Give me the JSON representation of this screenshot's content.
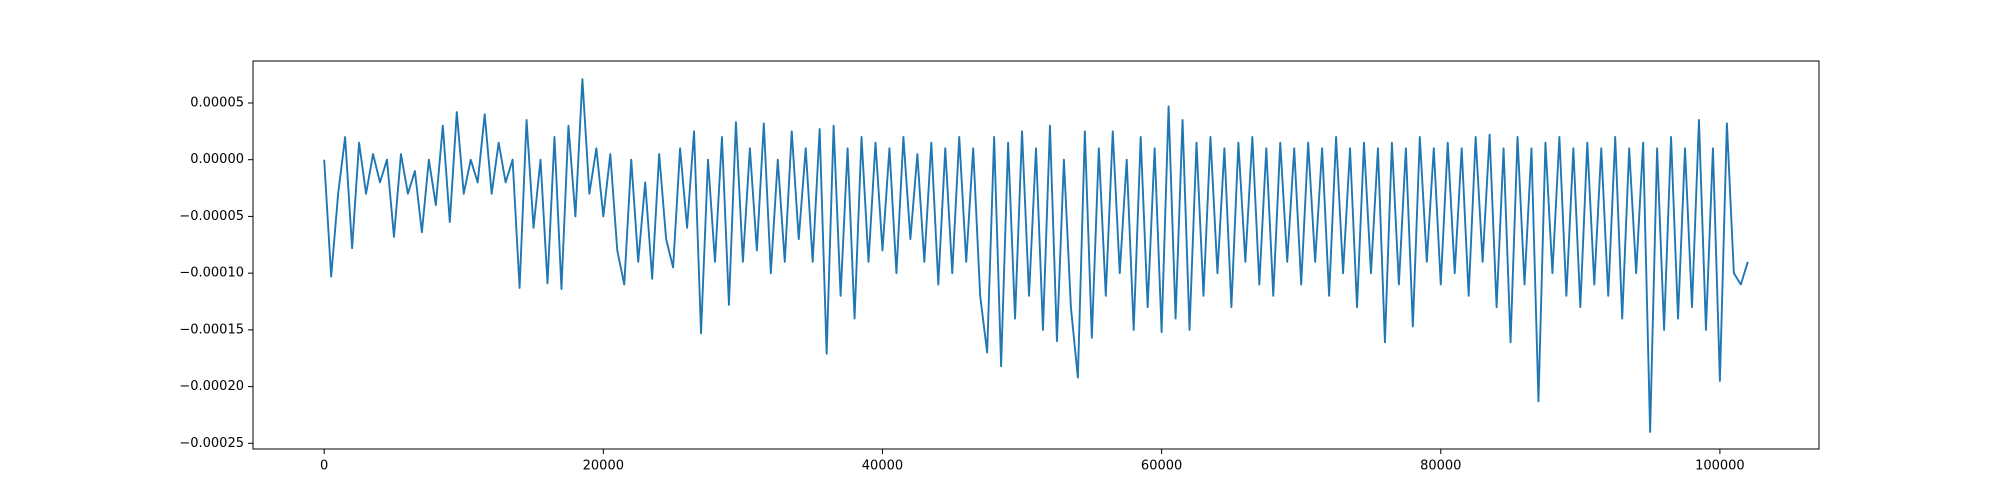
{
  "chart_data": {
    "type": "line",
    "color": "#1f77b4",
    "xlim": [
      -5100,
      107100
    ],
    "ylim": [
      -0.000255,
      8.7e-05
    ],
    "xticks": [
      0,
      20000,
      40000,
      60000,
      80000,
      100000
    ],
    "yticks": [
      {
        "value": 5e-05,
        "label": "0.00005"
      },
      {
        "value": 0,
        "label": "0.00000"
      },
      {
        "value": -5e-05,
        "label": "−0.00005"
      },
      {
        "value": -0.0001,
        "label": "−0.00010"
      },
      {
        "value": -0.00015,
        "label": "−0.00015"
      },
      {
        "value": -0.0002,
        "label": "−0.00020"
      },
      {
        "value": -0.00025,
        "label": "−0.00025"
      }
    ],
    "x": [
      0,
      500,
      1000,
      1500,
      2000,
      2500,
      3000,
      3500,
      4000,
      4500,
      5000,
      5500,
      6000,
      6500,
      7000,
      7500,
      8000,
      8500,
      9000,
      9500,
      10000,
      10500,
      11000,
      11500,
      12000,
      12500,
      13000,
      13500,
      14000,
      14500,
      15000,
      15500,
      16000,
      16500,
      17000,
      17500,
      18000,
      18500,
      19000,
      19500,
      20000,
      20500,
      21000,
      21500,
      22000,
      22500,
      23000,
      23500,
      24000,
      24500,
      25000,
      25500,
      26000,
      26500,
      27000,
      27500,
      28000,
      28500,
      29000,
      29500,
      30000,
      30500,
      31000,
      31500,
      32000,
      32500,
      33000,
      33500,
      34000,
      34500,
      35000,
      35500,
      36000,
      36500,
      37000,
      37500,
      38000,
      38500,
      39000,
      39500,
      40000,
      40500,
      41000,
      41500,
      42000,
      42500,
      43000,
      43500,
      44000,
      44500,
      45000,
      45500,
      46000,
      46500,
      47000,
      47500,
      48000,
      48500,
      49000,
      49500,
      50000,
      50500,
      51000,
      51500,
      52000,
      52500,
      53000,
      53500,
      54000,
      54500,
      55000,
      55500,
      56000,
      56500,
      57000,
      57500,
      58000,
      58500,
      59000,
      59500,
      60000,
      60500,
      61000,
      61500,
      62000,
      62500,
      63000,
      63500,
      64000,
      64500,
      65000,
      65500,
      66000,
      66500,
      67000,
      67500,
      68000,
      68500,
      69000,
      69500,
      70000,
      70500,
      71000,
      71500,
      72000,
      72500,
      73000,
      73500,
      74000,
      74500,
      75000,
      75500,
      76000,
      76500,
      77000,
      77500,
      78000,
      78500,
      79000,
      79500,
      80000,
      80500,
      81000,
      81500,
      82000,
      82500,
      83000,
      83500,
      84000,
      84500,
      85000,
      85500,
      86000,
      86500,
      87000,
      87500,
      88000,
      88500,
      89000,
      89500,
      90000,
      90500,
      91000,
      91500,
      92000,
      92500,
      93000,
      93500,
      94000,
      94500,
      95000,
      95500,
      96000,
      96500,
      97000,
      97500,
      98000,
      98500,
      99000,
      99500,
      100000,
      100500,
      101000,
      101500,
      102000
    ],
    "series": [
      {
        "color": "#1f77b4",
        "values": [
          0,
          -0.000103,
          -3e-05,
          2e-05,
          -7.8e-05,
          1.5e-05,
          -3e-05,
          5e-06,
          -2e-05,
          0,
          -6.8e-05,
          5e-06,
          -3e-05,
          -1e-05,
          -6.4e-05,
          0,
          -4e-05,
          3e-05,
          -5.5e-05,
          4.2e-05,
          -3e-05,
          0,
          -2e-05,
          4e-05,
          -3e-05,
          1.5e-05,
          -2e-05,
          0,
          -0.000113,
          3.5e-05,
          -6e-05,
          0,
          -0.000109,
          2e-05,
          -0.000114,
          3e-05,
          -5e-05,
          7.1e-05,
          -3e-05,
          1e-05,
          -5e-05,
          5e-06,
          -8e-05,
          -0.00011,
          0,
          -9e-05,
          -2e-05,
          -0.000105,
          5e-06,
          -7e-05,
          -9.5e-05,
          1e-05,
          -6e-05,
          2.5e-05,
          -0.000153,
          0,
          -9e-05,
          2e-05,
          -0.000128,
          3.3e-05,
          -9e-05,
          1e-05,
          -8e-05,
          3.2e-05,
          -0.0001,
          0,
          -9e-05,
          2.5e-05,
          -7e-05,
          1e-05,
          -9e-05,
          2.7e-05,
          -0.000171,
          3e-05,
          -0.00012,
          1e-05,
          -0.00014,
          2e-05,
          -9e-05,
          1.5e-05,
          -8e-05,
          1e-05,
          -0.0001,
          2e-05,
          -7e-05,
          5e-06,
          -9e-05,
          1.5e-05,
          -0.00011,
          1e-05,
          -0.0001,
          2e-05,
          -9e-05,
          1e-05,
          -0.00012,
          -0.00017,
          2e-05,
          -0.000182,
          1.5e-05,
          -0.00014,
          2.5e-05,
          -0.00012,
          1e-05,
          -0.00015,
          3e-05,
          -0.00016,
          0,
          -0.00013,
          -0.000192,
          2.5e-05,
          -0.000157,
          1e-05,
          -0.00012,
          2.5e-05,
          -0.0001,
          0,
          -0.00015,
          2e-05,
          -0.00013,
          1e-05,
          -0.000152,
          4.7e-05,
          -0.00014,
          3.5e-05,
          -0.00015,
          1.5e-05,
          -0.00012,
          2e-05,
          -0.0001,
          1e-05,
          -0.00013,
          1.5e-05,
          -9e-05,
          2e-05,
          -0.00011,
          1e-05,
          -0.00012,
          1.5e-05,
          -9e-05,
          1e-05,
          -0.00011,
          1.5e-05,
          -9e-05,
          1e-05,
          -0.00012,
          2e-05,
          -0.0001,
          1e-05,
          -0.00013,
          1.5e-05,
          -0.0001,
          1e-05,
          -0.000161,
          1.5e-05,
          -0.00011,
          1e-05,
          -0.000147,
          2e-05,
          -9e-05,
          1e-05,
          -0.00011,
          1.5e-05,
          -0.0001,
          1e-05,
          -0.00012,
          2e-05,
          -9e-05,
          2.2e-05,
          -0.00013,
          1e-05,
          -0.000161,
          2e-05,
          -0.00011,
          1e-05,
          -0.000213,
          1.5e-05,
          -0.0001,
          2e-05,
          -0.00012,
          1e-05,
          -0.00013,
          1.5e-05,
          -0.00011,
          1e-05,
          -0.00012,
          2e-05,
          -0.00014,
          1e-05,
          -0.0001,
          1.5e-05,
          -0.00024,
          1e-05,
          -0.00015,
          2e-05,
          -0.00014,
          1e-05,
          -0.00013,
          3.5e-05,
          -0.00015,
          1e-05,
          -0.000195,
          3.2e-05,
          -0.0001,
          -0.00011,
          -9e-05
        ]
      }
    ]
  }
}
